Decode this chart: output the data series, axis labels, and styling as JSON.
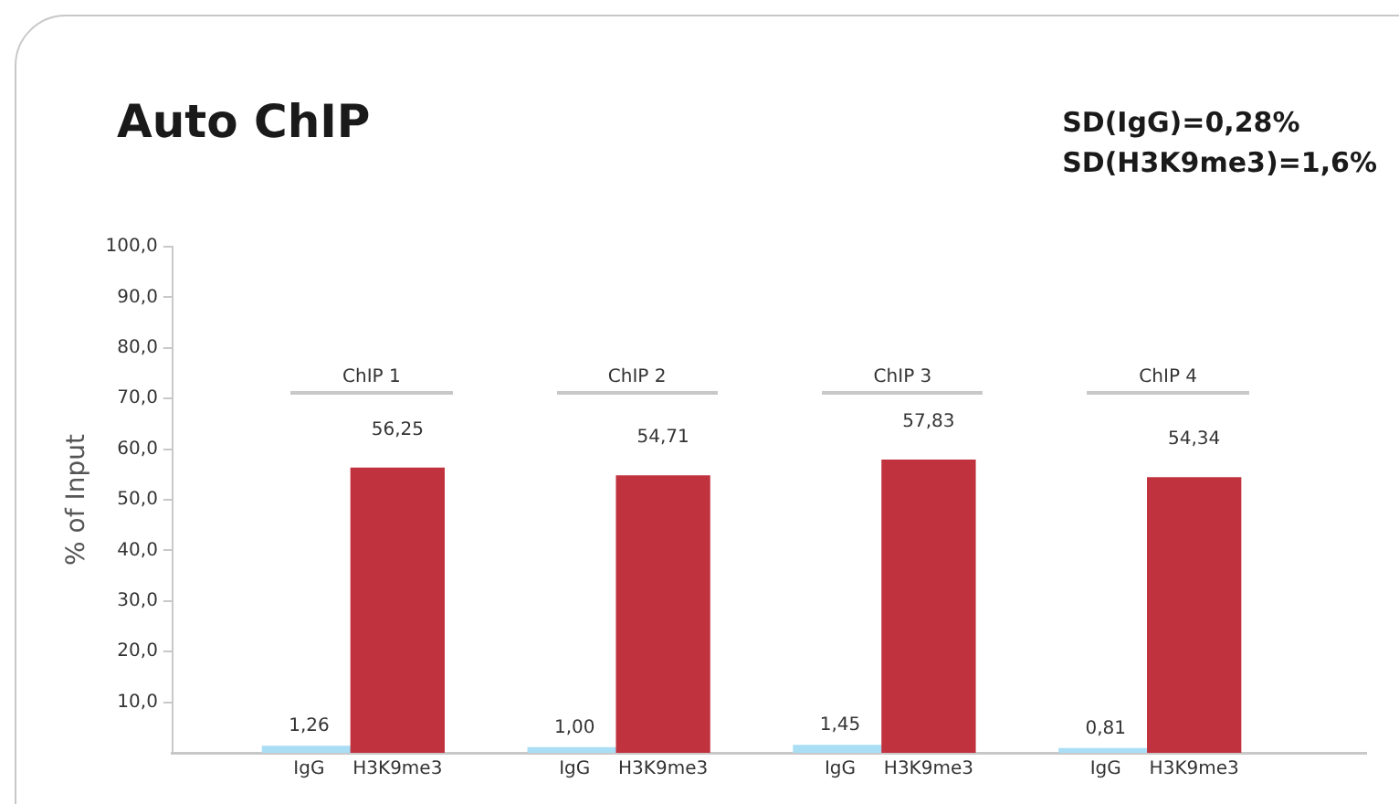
{
  "chart_data": {
    "type": "bar",
    "title": "Auto ChIP",
    "ylabel": "% of Input",
    "categories": [
      "IgG",
      "H3K9me3",
      "IgG",
      "H3K9me3",
      "IgG",
      "H3K9me3",
      "IgG",
      "H3K9me3"
    ],
    "values": [
      1.26,
      56.25,
      1.0,
      54.71,
      1.45,
      57.83,
      0.81,
      54.34
    ],
    "value_labels": [
      "1,26",
      "56,25",
      "1,00",
      "54,71",
      "1,45",
      "57,83",
      "0,81",
      "54,34"
    ],
    "colors": [
      "#a9def5",
      "#c1323f",
      "#a9def5",
      "#c1323f",
      "#a9def5",
      "#c1323f",
      "#a9def5",
      "#c1323f"
    ],
    "ylim": [
      0,
      100
    ],
    "yticks": [
      {
        "value": 10,
        "label": "10,0"
      },
      {
        "value": 20,
        "label": "20,0"
      },
      {
        "value": 30,
        "label": "30,0"
      },
      {
        "value": 40,
        "label": "40,0"
      },
      {
        "value": 50,
        "label": "50,0"
      },
      {
        "value": 60,
        "label": "60,0"
      },
      {
        "value": 70,
        "label": "70,0"
      },
      {
        "value": 80,
        "label": "80,0"
      },
      {
        "value": 90,
        "label": "90,0"
      },
      {
        "value": 100,
        "label": "100,0"
      }
    ],
    "annotations": [
      "ChIP 1",
      "ChIP 2",
      "ChIP 3",
      "ChIP 4",
      "SD(IgG)=0,28%",
      "SD(H3K9me3)=1,6%"
    ],
    "grid": false,
    "legend": false
  }
}
